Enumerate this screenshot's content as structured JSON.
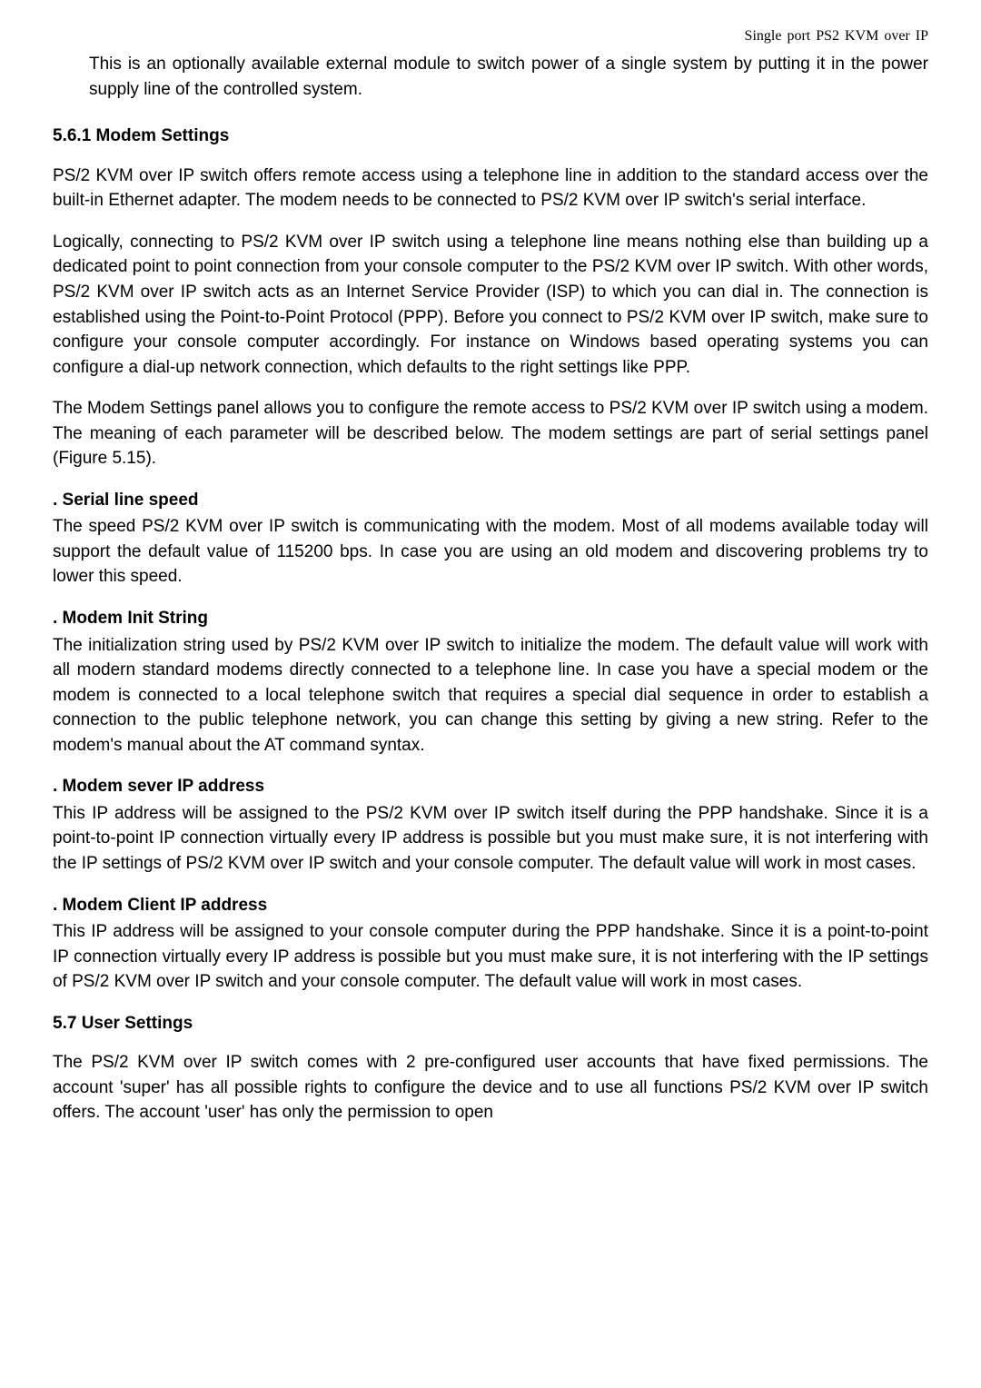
{
  "header": {
    "text": "Single port PS2 KVM over IP"
  },
  "intro": {
    "text": "This is an optionally available external module to switch power of a single system by putting it in the power supply line of the controlled system."
  },
  "section561": {
    "heading": "5.6.1 Modem Settings",
    "para1": "PS/2 KVM over IP switch offers remote access using a telephone line in addition to the standard access over the built-in Ethernet adapter. The modem needs to be connected to PS/2 KVM over IP switch's serial interface.",
    "para2": "Logically, connecting to PS/2 KVM over IP switch using a telephone line means nothing else than building up a dedicated point to point connection from your console computer to the PS/2 KVM over IP switch. With other words, PS/2 KVM over IP switch acts as an Internet Service Provider (ISP) to which you can dial in. The connection is established using the Point-to-Point Protocol (PPP). Before you connect to PS/2 KVM over IP switch, make sure to configure your console computer accordingly. For instance on Windows based operating systems you can configure a dial-up network connection, which defaults to the right settings like PPP.",
    "para3": "The Modem Settings panel allows you to configure the remote access to PS/2 KVM over IP switch using a modem. The meaning of each parameter will be described below. The modem settings are part of serial settings panel (Figure 5.15)."
  },
  "serialLineSpeed": {
    "heading": ". Serial line speed",
    "text": "The speed PS/2 KVM over IP switch is communicating with the modem. Most of all modems available today will support the default value of 115200 bps. In case you are using an old modem and discovering problems try to lower this speed."
  },
  "modemInitString": {
    "heading": ". Modem Init String",
    "text": "The initialization string used by PS/2 KVM over IP switch to initialize the modem. The default value will work with all modern standard modems directly connected to a telephone line. In case you have a special modem or the modem is connected to a local telephone switch that requires a special dial sequence in order to establish a connection to the public telephone network, you can change this setting by giving a new string. Refer to the modem's manual about the AT command syntax."
  },
  "modemServerIP": {
    "heading": ". Modem sever IP address",
    "text": "This IP address will be assigned to the PS/2 KVM over IP switch itself during the PPP handshake. Since it is a point-to-point IP connection virtually every IP address is possible but you must make sure, it is not interfering with the IP settings of PS/2 KVM over IP switch and your console computer. The default value will work in most cases."
  },
  "modemClientIP": {
    "heading": ". Modem Client IP address",
    "text": "This IP address will be assigned to your console computer during the PPP handshake. Since it is a point-to-point IP connection virtually every IP address is possible but you must make sure, it is not interfering with the IP settings of PS/2 KVM over IP switch and your console computer. The default value will work in most cases."
  },
  "section57": {
    "heading": "5.7 User Settings",
    "para1": "The PS/2 KVM over IP switch comes with 2 pre-configured user accounts that have fixed permissions. The account 'super' has all possible rights to configure the device and to use all functions PS/2 KVM over IP switch offers. The account 'user' has only the permission to open"
  }
}
